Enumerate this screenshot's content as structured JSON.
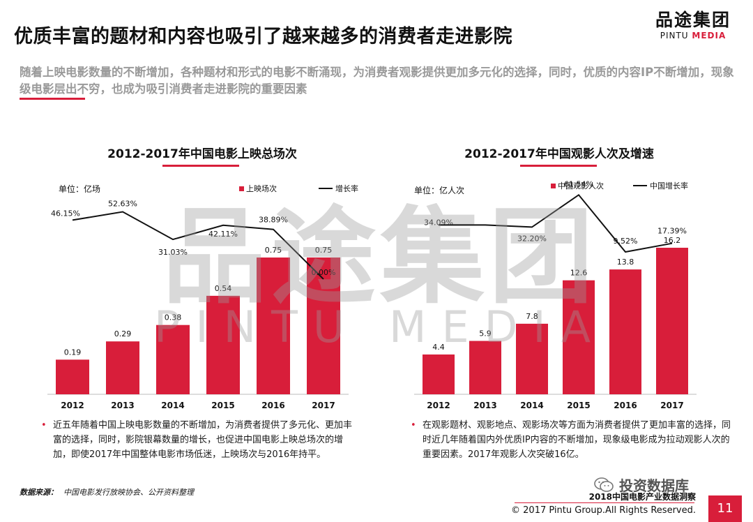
{
  "header": {
    "title": "优质丰富的题材和内容也吸引了越来越多的消费者走进影院",
    "logo_cn": "品途集团",
    "logo_en_a": "PINTU ",
    "logo_en_b": "MEDIA",
    "subtitle": "随着上映电影数量的不断增加，各种题材和形式的电影不断涌现，为消费者观影提供更加多元化的选择，同时，优质的内容IP不断增加，现象级电影层出不穷，也成为吸引消费者走进影院的重要因素"
  },
  "watermark": {
    "cn": "品途集团",
    "en": "PINTU MEDIA"
  },
  "charts": [
    {
      "title": "2012-2017年中国电影上映总场次",
      "unit": "单位：亿场",
      "legend_bar": "上映场次",
      "legend_line": "增长率"
    },
    {
      "title": "2012-2017年中国观影人次及增速",
      "unit": "单位：亿人次",
      "legend_bar": "中国观影人次",
      "legend_line": "中国增长率"
    }
  ],
  "chart_data": [
    {
      "type": "bar",
      "title": "2012-2017年中国电影上映总场次",
      "categories": [
        "2012",
        "2013",
        "2014",
        "2015",
        "2016",
        "2017"
      ],
      "series": [
        {
          "name": "上映场次",
          "type": "bar",
          "values": [
            0.19,
            0.29,
            0.38,
            0.54,
            0.75,
            0.75
          ],
          "labels": [
            "0.19",
            "0.29",
            "0.38",
            "0.54",
            "0.75",
            "0.75"
          ]
        },
        {
          "name": "增长率",
          "type": "line",
          "values": [
            46.15,
            52.63,
            31.03,
            42.11,
            38.89,
            0.0
          ],
          "labels": [
            "46.15%",
            "52.63%",
            "31.03%",
            "42.11%",
            "38.89%",
            "0.00%"
          ]
        }
      ],
      "ylabel": "单位：亿场",
      "bar_ylim": [
        0,
        0.75
      ],
      "line_ylim": [
        0,
        60
      ]
    },
    {
      "type": "bar",
      "title": "2012-2017年中国观影人次及增速",
      "categories": [
        "2012",
        "2013",
        "2014",
        "2015",
        "2016",
        "2017"
      ],
      "series": [
        {
          "name": "中国观影人次",
          "type": "bar",
          "values": [
            4.4,
            5.9,
            7.8,
            12.6,
            13.8,
            16.2
          ],
          "labels": [
            "4.4",
            "5.9",
            "7.8",
            "12.6",
            "13.8",
            "16.2"
          ]
        },
        {
          "name": "中国增长率",
          "type": "line",
          "values": [
            34.09,
            34.09,
            32.2,
            61.54,
            9.52,
            17.39
          ],
          "labels": [
            "34.09%",
            "",
            "32.20%",
            "61.54%",
            "9.52%",
            "17.39%"
          ]
        }
      ],
      "ylabel": "单位：亿人次",
      "bar_ylim": [
        0,
        16.2
      ],
      "line_ylim": [
        0,
        70
      ]
    }
  ],
  "bullets": {
    "left": "近五年随着中国上映电影数量的不断增加，为消费者提供了多元化、更加丰富的选择，同时，影院银幕数量的增长，也促进中国电影上映总场次的增加，即使2017年中国整体电影市场低迷，上映场次与2016年持平。",
    "right": "在观影题材、观影地点、观影场次等方面为消费者提供了更加丰富的选择，同时近几年随着国内外优质IP内容的不断增加，现象级电影成为拉动观影人次的重要因素。2017年观影人次突破16亿。",
    "dot": "•"
  },
  "footer": {
    "source_label": "数据来源：",
    "source_text": "中国电影发行放映协会、公开资料整理",
    "report": "2018中国电影产业数据洞察",
    "copyright": "© 2017 Pintu Group.All Rights Reserved.",
    "page": "11",
    "wechat": "投资数据库"
  },
  "colors": {
    "accent": "#d81e3a",
    "line": "#111111",
    "watermark": "#9a9a9a"
  }
}
